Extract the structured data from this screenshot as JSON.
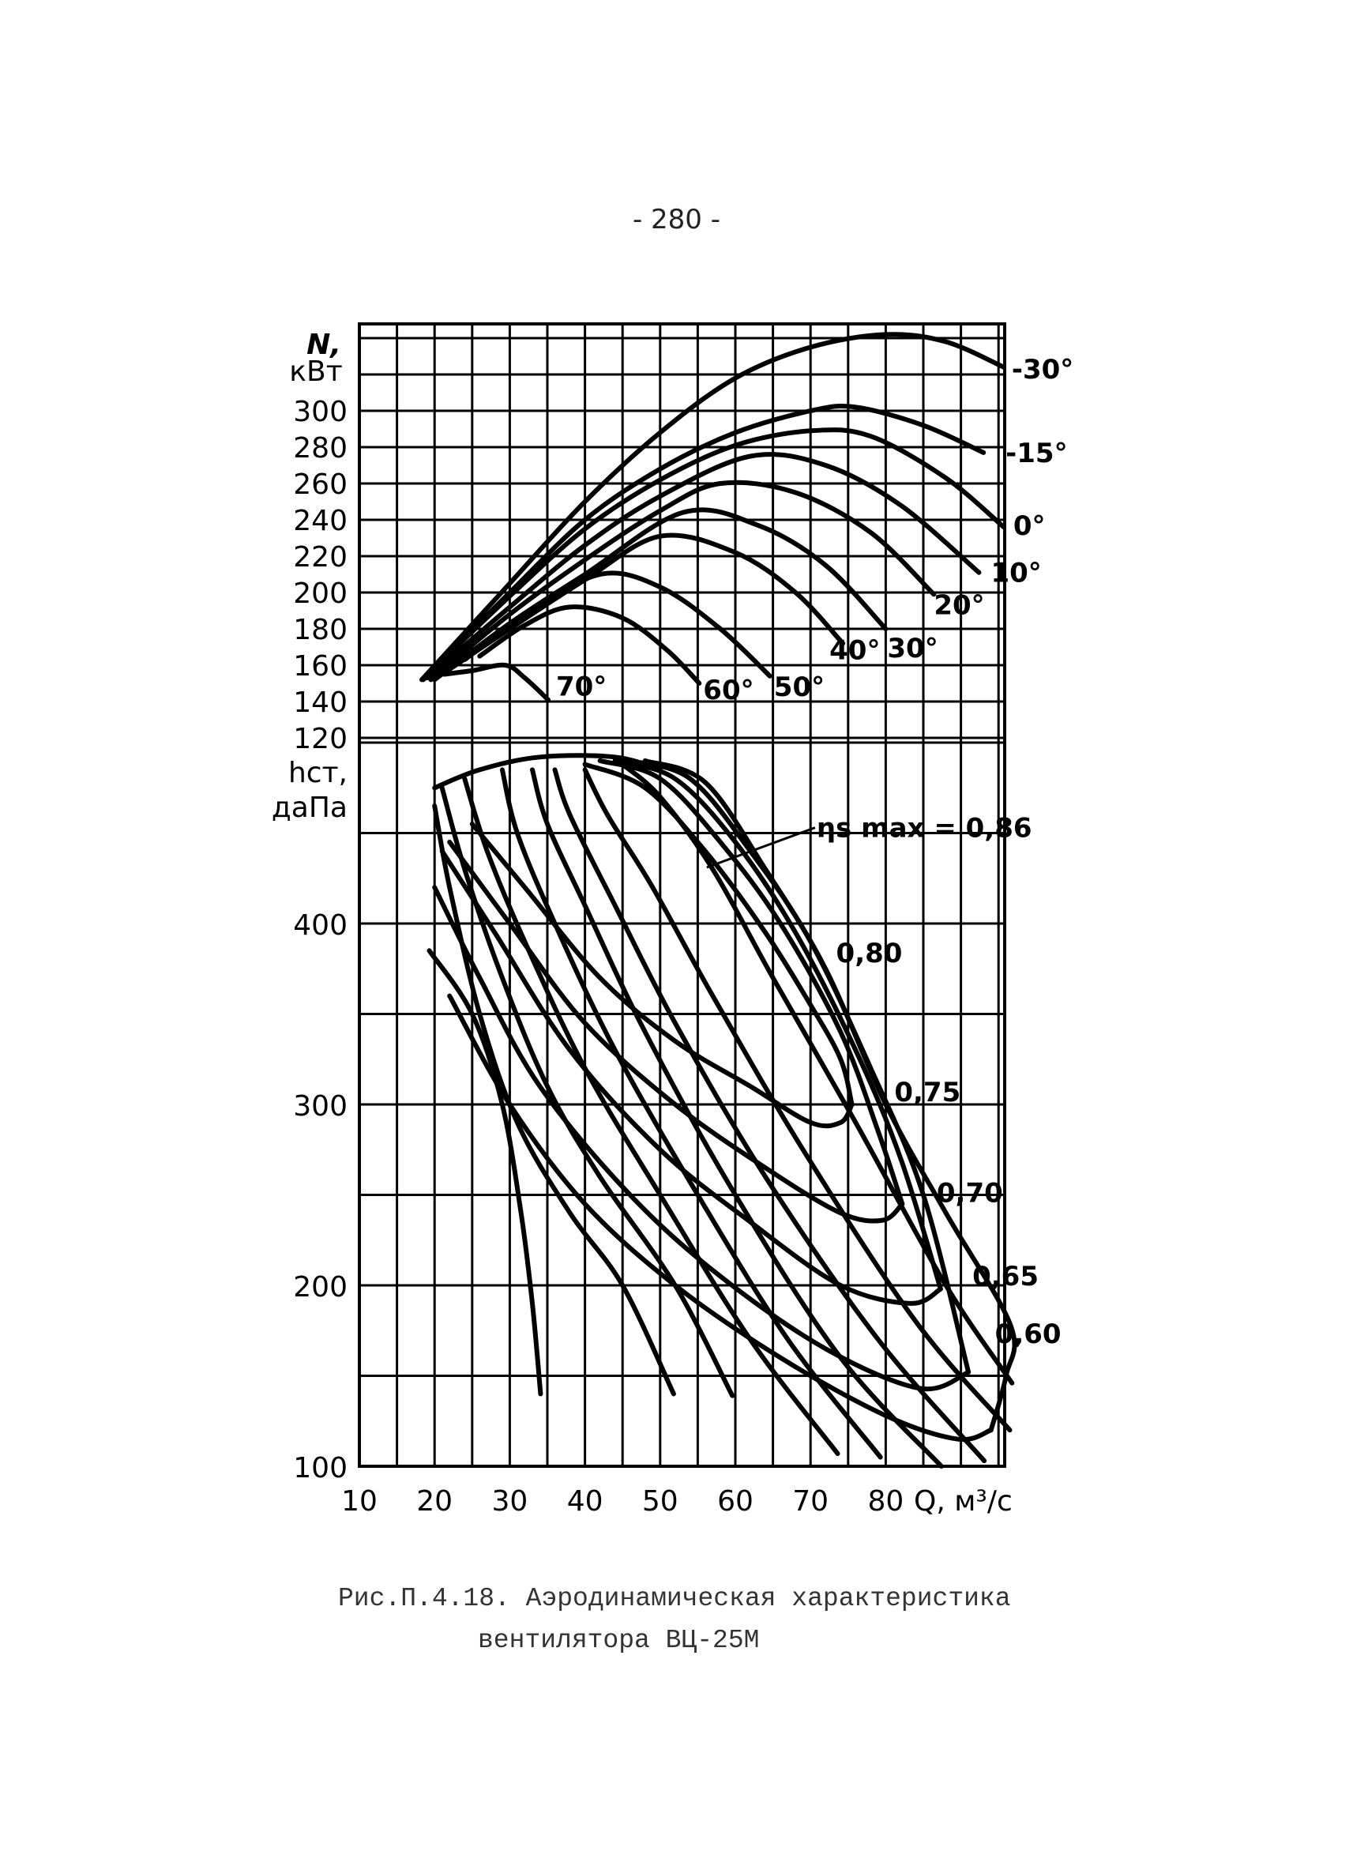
{
  "page_number": "- 280 -",
  "caption": {
    "line1": "Рис.П.4.18. Аэродинамическая характеристика",
    "line2": "вентилятора ВЦ-25М"
  },
  "chart_data": {
    "type": "line",
    "title": "Аэродинамическая характеристика вентилятора ВЦ-25М",
    "xlabel": "Q, м³/с",
    "x_ticks": [
      "10",
      "20",
      "30",
      "40",
      "50",
      "60",
      "70",
      "80"
    ],
    "x_range": [
      10,
      96
    ],
    "grid": true,
    "power_axis": {
      "label_line1": "N,",
      "label_line2": "кВт",
      "ticks": [
        "300",
        "280",
        "260",
        "240",
        "220",
        "200",
        "180",
        "160",
        "140",
        "120"
      ],
      "range": [
        120,
        340
      ]
    },
    "pressure_axis": {
      "label_line1": "hст,",
      "label_line2": "даПа",
      "ticks": [
        "400",
        "300",
        "200",
        "100"
      ],
      "range": [
        100,
        500
      ]
    },
    "power_curves": [
      {
        "name": "-30°",
        "points": [
          [
            18.3,
            152
          ],
          [
            30,
            205
          ],
          [
            40,
            250
          ],
          [
            50,
            288
          ],
          [
            60,
            318
          ],
          [
            70,
            335
          ],
          [
            80,
            342
          ],
          [
            88,
            338
          ],
          [
            95.7,
            324
          ]
        ]
      },
      {
        "name": "-15°",
        "points": [
          [
            18.5,
            152
          ],
          [
            30,
            200
          ],
          [
            40,
            240
          ],
          [
            50,
            268
          ],
          [
            60,
            288
          ],
          [
            70,
            300
          ],
          [
            76,
            302
          ],
          [
            85,
            292
          ],
          [
            93,
            277
          ]
        ]
      },
      {
        "name": "0°",
        "points": [
          [
            18.6,
            153
          ],
          [
            30,
            198
          ],
          [
            40,
            235
          ],
          [
            50,
            262
          ],
          [
            60,
            281
          ],
          [
            70,
            289
          ],
          [
            78,
            286
          ],
          [
            88,
            263
          ],
          [
            95.7,
            236
          ]
        ]
      },
      {
        "name": "10°",
        "points": [
          [
            19,
            153
          ],
          [
            30,
            192
          ],
          [
            40,
            226
          ],
          [
            50,
            253
          ],
          [
            62,
            275
          ],
          [
            72,
            270
          ],
          [
            82,
            248
          ],
          [
            92.4,
            211
          ]
        ]
      },
      {
        "name": "20°",
        "points": [
          [
            19.5,
            152
          ],
          [
            30,
            188
          ],
          [
            40,
            218
          ],
          [
            50,
            245
          ],
          [
            58,
            260
          ],
          [
            68,
            255
          ],
          [
            78,
            233
          ],
          [
            86.4,
            199
          ]
        ]
      },
      {
        "name": "30°",
        "points": [
          [
            20,
            152
          ],
          [
            30,
            183
          ],
          [
            40,
            210
          ],
          [
            53,
            244
          ],
          [
            63,
            237
          ],
          [
            72,
            215
          ],
          [
            80,
            180
          ]
        ]
      },
      {
        "name": "40°",
        "points": [
          [
            21,
            155
          ],
          [
            30,
            180
          ],
          [
            40,
            207
          ],
          [
            50,
            231
          ],
          [
            60,
            222
          ],
          [
            68,
            200
          ],
          [
            74.3,
            172
          ]
        ]
      },
      {
        "name": "50°",
        "points": [
          [
            24,
            163
          ],
          [
            32,
            188
          ],
          [
            42,
            210
          ],
          [
            50,
            203
          ],
          [
            58,
            180
          ],
          [
            64.6,
            154
          ]
        ]
      },
      {
        "name": "60°",
        "points": [
          [
            26,
            165
          ],
          [
            32,
            182
          ],
          [
            38,
            192
          ],
          [
            45,
            186
          ],
          [
            51,
            168
          ],
          [
            55.2,
            150
          ]
        ]
      },
      {
        "name": "70°",
        "points": [
          [
            21.3,
            155
          ],
          [
            25,
            157
          ],
          [
            29.4,
            160
          ],
          [
            32,
            153
          ],
          [
            35.1,
            141
          ]
        ]
      }
    ],
    "pressure_blade_curves": [
      [
        [
          19.3,
          385
        ],
        [
          25,
          350
        ],
        [
          29,
          300
        ],
        [
          31.5,
          240
        ],
        [
          33,
          190
        ],
        [
          34.1,
          140
        ]
      ],
      [
        [
          20,
          465
        ],
        [
          22,
          420
        ],
        [
          26,
          350
        ],
        [
          31,
          290
        ],
        [
          38,
          240
        ],
        [
          45,
          200
        ],
        [
          51.8,
          140
        ]
      ],
      [
        [
          21,
          475
        ],
        [
          24,
          430
        ],
        [
          29,
          370
        ],
        [
          35,
          310
        ],
        [
          42,
          260
        ],
        [
          52,
          200
        ],
        [
          59.6,
          139
        ]
      ],
      [
        [
          24,
          480
        ],
        [
          27,
          440
        ],
        [
          32,
          390
        ],
        [
          40,
          320
        ],
        [
          50,
          250
        ],
        [
          62,
          170
        ],
        [
          73.6,
          107
        ]
      ],
      [
        [
          29,
          485
        ],
        [
          31,
          450
        ],
        [
          36,
          400
        ],
        [
          44,
          330
        ],
        [
          55,
          250
        ],
        [
          67,
          170
        ],
        [
          79.3,
          105
        ]
      ],
      [
        [
          33,
          485
        ],
        [
          35,
          455
        ],
        [
          40,
          410
        ],
        [
          48,
          340
        ],
        [
          60,
          250
        ],
        [
          74,
          160
        ],
        [
          87.4,
          100
        ]
      ],
      [
        [
          36,
          485
        ],
        [
          38,
          460
        ],
        [
          44,
          410
        ],
        [
          52,
          345
        ],
        [
          64,
          260
        ],
        [
          79,
          170
        ],
        [
          93.1,
          103
        ]
      ],
      [
        [
          40,
          485
        ],
        [
          43,
          460
        ],
        [
          49,
          420
        ],
        [
          57,
          360
        ],
        [
          69,
          275
        ],
        [
          84,
          180
        ],
        [
          96.5,
          120
        ]
      ],
      [
        [
          45,
          488
        ],
        [
          50,
          470
        ],
        [
          57,
          430
        ],
        [
          65,
          370
        ],
        [
          76,
          290
        ],
        [
          88,
          200
        ],
        [
          96.8,
          146
        ]
      ]
    ],
    "pressure_cap": [
      [
        20,
        475
      ],
      [
        26,
        485
      ],
      [
        34,
        492
      ],
      [
        44,
        492
      ],
      [
        50,
        485
      ]
    ],
    "efficiency_contours": [
      {
        "name": "0,80",
        "lower": [
          [
            25,
            455
          ],
          [
            32,
            420
          ],
          [
            42,
            370
          ],
          [
            52,
            335
          ],
          [
            62,
            310
          ],
          [
            70,
            290
          ],
          [
            74,
            290
          ],
          [
            75.5,
            300
          ]
        ],
        "upper": [
          [
            40,
            488
          ],
          [
            48,
            475
          ],
          [
            56,
            440
          ],
          [
            64,
            395
          ],
          [
            70,
            355
          ],
          [
            74,
            325
          ],
          [
            75.5,
            300
          ]
        ]
      },
      {
        "name": "0,75",
        "lower": [
          [
            22,
            445
          ],
          [
            30,
            400
          ],
          [
            40,
            345
          ],
          [
            52,
            300
          ],
          [
            64,
            265
          ],
          [
            74,
            240
          ],
          [
            79.6,
            236
          ],
          [
            82.2,
            245
          ]
        ],
        "upper": [
          [
            42,
            490
          ],
          [
            50,
            480
          ],
          [
            58,
            445
          ],
          [
            66,
            400
          ],
          [
            74,
            340
          ],
          [
            79,
            285
          ],
          [
            82.2,
            245
          ]
        ]
      },
      {
        "name": "0,70",
        "lower": [
          [
            21,
            440
          ],
          [
            28,
            395
          ],
          [
            38,
            330
          ],
          [
            50,
            275
          ],
          [
            62,
            235
          ],
          [
            74,
            200
          ],
          [
            83.3,
            190
          ],
          [
            87.3,
            198
          ]
        ],
        "upper": [
          [
            44,
            490
          ],
          [
            52,
            480
          ],
          [
            60,
            445
          ],
          [
            68,
            395
          ],
          [
            76,
            330
          ],
          [
            82,
            270
          ],
          [
            87.3,
            198
          ]
        ]
      },
      {
        "name": "0,65",
        "lower": [
          [
            20,
            420
          ],
          [
            26,
            370
          ],
          [
            34,
            310
          ],
          [
            46,
            250
          ],
          [
            58,
            205
          ],
          [
            72,
            165
          ],
          [
            84.6,
            143
          ],
          [
            91,
            152
          ]
        ],
        "upper": [
          [
            46,
            490
          ],
          [
            54,
            480
          ],
          [
            62,
            440
          ],
          [
            70,
            390
          ],
          [
            78,
            320
          ],
          [
            85,
            250
          ],
          [
            91,
            152
          ]
        ]
      },
      {
        "name": "0,60",
        "lower": [
          [
            22,
            360
          ],
          [
            30,
            300
          ],
          [
            40,
            245
          ],
          [
            52,
            200
          ],
          [
            66,
            160
          ],
          [
            80,
            128
          ],
          [
            89.6,
            115
          ],
          [
            94,
            120
          ]
        ],
        "upper": [
          [
            48,
            490
          ],
          [
            56,
            478
          ],
          [
            64,
            430
          ],
          [
            72,
            375
          ],
          [
            80,
            300
          ],
          [
            88,
            240
          ],
          [
            96.6,
            178
          ],
          [
            96,
            150
          ],
          [
            94,
            120
          ]
        ]
      }
    ],
    "efficiency_max_label": "ηs max = 0,86",
    "efficiency_max_pointer": [
      [
        56.2,
        431
      ],
      [
        70.6,
        453
      ]
    ]
  }
}
